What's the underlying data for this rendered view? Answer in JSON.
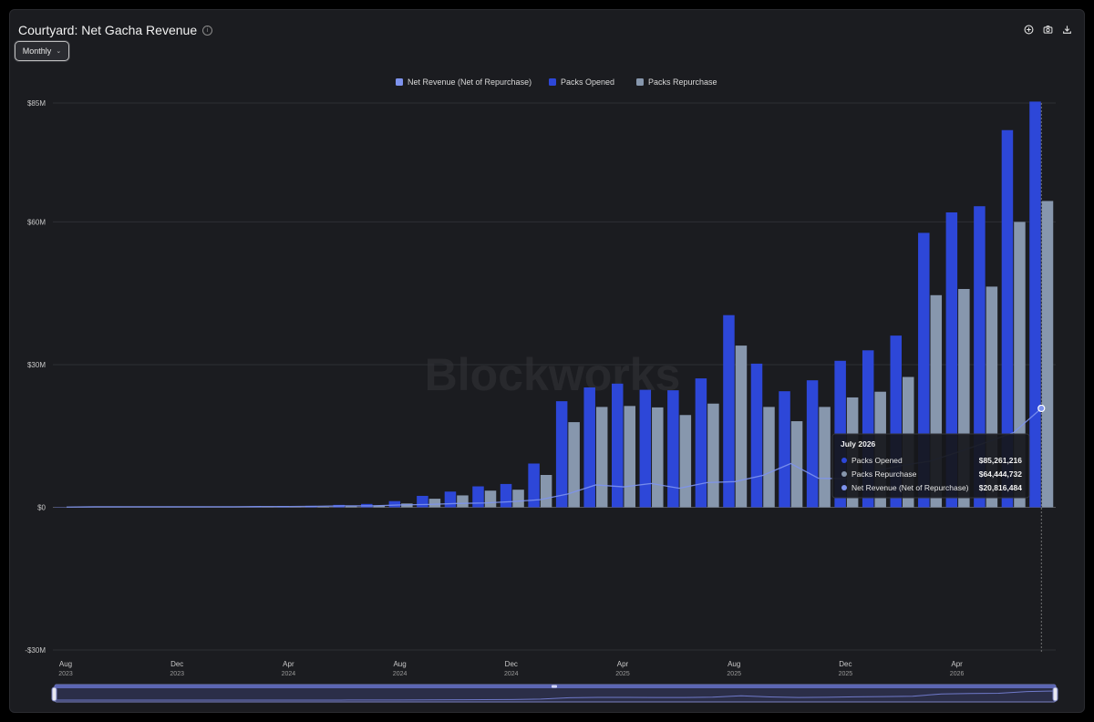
{
  "header": {
    "title": "Courtyard: Net Gacha Revenue",
    "period_label": "Monthly"
  },
  "toolbar": {
    "icons": [
      "add-icon",
      "camera-icon",
      "download-icon"
    ]
  },
  "watermark": "Blockworks",
  "colors": {
    "packs_opened": "#2d47d8",
    "packs_repurchase": "#8797ad",
    "net_revenue": "#7e93ee",
    "background": "#1b1c20",
    "grid": "#2e2f35"
  },
  "tooltip": {
    "title": "July 2026",
    "rows": [
      {
        "label": "Packs Opened",
        "value": "$85,261,216"
      },
      {
        "label": "Packs Repurchase",
        "value": "$64,444,732"
      },
      {
        "label": "Net Revenue (Net of Repurchase)",
        "value": "$20,816,484"
      }
    ]
  },
  "chart_data": {
    "type": "bar",
    "title": "Courtyard: Net Gacha Revenue",
    "legend_position": "top-center",
    "grid": true,
    "y_unit": "USD millions",
    "ylim": [
      -30,
      85
    ],
    "y_ticks": [
      {
        "value": 85,
        "label": "$85M"
      },
      {
        "value": 60,
        "label": "$60M"
      },
      {
        "value": 30,
        "label": "$30M"
      },
      {
        "value": 0,
        "label": "$0"
      },
      {
        "value": -30,
        "label": "-$30M"
      }
    ],
    "x_ticks": [
      {
        "index": 0,
        "month": "Aug",
        "year": "2023"
      },
      {
        "index": 4,
        "month": "Dec",
        "year": "2023"
      },
      {
        "index": 8,
        "month": "Apr",
        "year": "2024"
      },
      {
        "index": 12,
        "month": "Aug",
        "year": "2024"
      },
      {
        "index": 16,
        "month": "Dec",
        "year": "2024"
      },
      {
        "index": 20,
        "month": "Apr",
        "year": "2025"
      },
      {
        "index": 24,
        "month": "Aug",
        "year": "2025"
      },
      {
        "index": 28,
        "month": "Dec",
        "year": "2025"
      },
      {
        "index": 32,
        "month": "Apr",
        "year": "2026"
      }
    ],
    "categories": [
      "2023-08",
      "2023-09",
      "2023-10",
      "2023-11",
      "2023-12",
      "2024-01",
      "2024-02",
      "2024-03",
      "2024-04",
      "2024-05",
      "2024-06",
      "2024-07",
      "2024-08",
      "2024-09",
      "2024-10",
      "2024-11",
      "2024-12",
      "2025-01",
      "2025-02",
      "2025-03",
      "2025-04",
      "2025-05",
      "2025-06",
      "2025-07",
      "2025-08",
      "2025-09",
      "2025-10",
      "2025-11",
      "2025-12",
      "2026-01",
      "2026-02",
      "2026-03",
      "2026-04",
      "2026-05",
      "2026-06",
      "2026-07"
    ],
    "series": [
      {
        "name": "Net Revenue (Net of Repurchase)",
        "type": "line",
        "values": [
          0.05,
          0.1,
          0.1,
          0.1,
          0.1,
          0.1,
          0.1,
          0.15,
          0.15,
          0.2,
          0.3,
          0.3,
          0.5,
          0.6,
          0.8,
          0.9,
          1.2,
          1.6,
          2.8,
          4.7,
          4.3,
          5.0,
          4.0,
          5.2,
          5.4,
          6.7,
          9.2,
          6.1,
          6.0,
          7.6,
          8.8,
          9.7,
          11.6,
          13.6,
          15.7,
          20.8
        ]
      },
      {
        "name": "Packs Opened",
        "type": "bar",
        "values": [
          0.05,
          0.1,
          0.1,
          0.1,
          0.1,
          0.1,
          0.1,
          0.2,
          0.2,
          0.3,
          0.5,
          0.7,
          1.3,
          2.4,
          3.3,
          4.4,
          4.9,
          9.2,
          22.3,
          25.2,
          26.0,
          24.7,
          24.6,
          27.1,
          40.4,
          30.2,
          24.4,
          26.7,
          30.8,
          33.0,
          36.1,
          57.7,
          62.0,
          63.3,
          79.3,
          85.3
        ]
      },
      {
        "name": "Packs Repurchase",
        "type": "bar",
        "values": [
          0.0,
          0.0,
          0.0,
          0.0,
          0.0,
          0.0,
          0.0,
          0.05,
          0.05,
          0.1,
          0.2,
          0.4,
          0.8,
          1.8,
          2.5,
          3.5,
          3.7,
          6.8,
          17.9,
          21.1,
          21.3,
          21.0,
          19.4,
          21.8,
          34.0,
          21.1,
          18.1,
          21.1,
          23.1,
          24.3,
          27.4,
          44.6,
          45.9,
          46.4,
          60.0,
          64.4
        ]
      }
    ]
  }
}
